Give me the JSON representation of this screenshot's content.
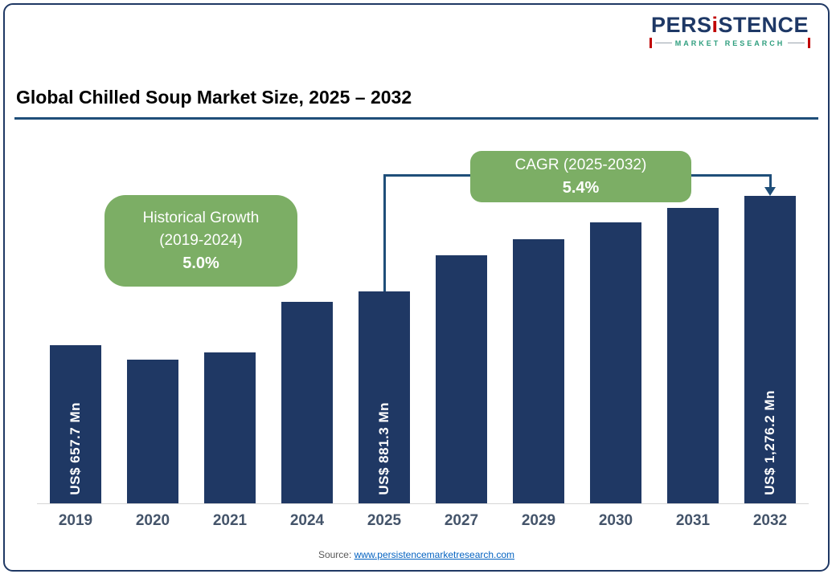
{
  "logo": {
    "wordmark": {
      "pre": "PERS",
      "i": "i",
      "post": "STENCE"
    },
    "tagline": "MARKET RESEARCH"
  },
  "header": {
    "title": "Global Chilled Soup Market Size, 2025 – 2032"
  },
  "callouts": {
    "historical": {
      "line1": "Historical Growth",
      "line2": "(2019-2024)",
      "value": "5.0%"
    },
    "cagr": {
      "line1": "CAGR (2025-2032)",
      "value": "5.4%"
    }
  },
  "footer": {
    "source_prefix": "Source:",
    "source_link": "www.persistencemarketresearch.com"
  },
  "colors": {
    "bar_navy": "#1F3864",
    "callout_green": "#7CAE65",
    "bracket_navy": "#1F4E79",
    "logo_navy": "#1E3866",
    "logo_red": "#C00000",
    "logo_teal": "#2E9E7E",
    "link_blue": "#0563C1"
  },
  "chart_data": {
    "type": "bar",
    "title": "Global Chilled Soup Market Size, 2025 – 2032",
    "unit": "US$ Mn",
    "categories": [
      "2019",
      "2020",
      "2021",
      "2024",
      "2025",
      "2027",
      "2029",
      "2030",
      "2031",
      "2032"
    ],
    "values": [
      657.7,
      595,
      625,
      835,
      881.3,
      1030,
      1095,
      1165,
      1225,
      1276.2
    ],
    "data_labels": {
      "2019": "US$ 657.7 Mn",
      "2025": "US$ 881.3 Mn",
      "2032": "US$ 1,276.2 Mn"
    },
    "labeled_categories": [
      "2019",
      "2025",
      "2032"
    ],
    "estimated_categories": [
      "2020",
      "2021",
      "2024",
      "2027",
      "2029",
      "2030",
      "2031"
    ],
    "ylim": [
      0,
      1300
    ],
    "historical_growth_2019_2024": "5.0%",
    "cagr_2025_2032": "5.4%",
    "bracket": {
      "from_year": "2025",
      "to_year": "2032"
    },
    "legend": "none",
    "grid": "off"
  }
}
